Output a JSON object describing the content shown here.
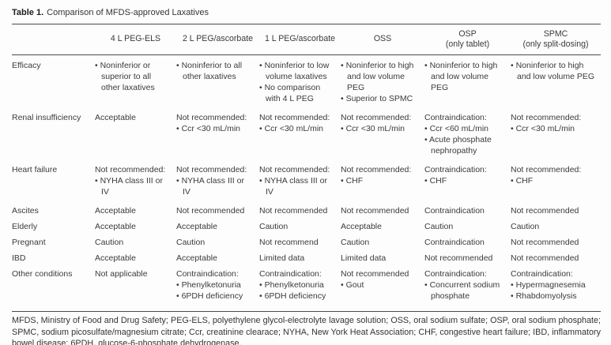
{
  "title": {
    "label": "Table 1.",
    "caption": "Comparison of MFDS-approved Laxatives"
  },
  "table": {
    "header": [
      {
        "lines": [
          ""
        ]
      },
      {
        "lines": [
          "4 L PEG-ELS"
        ]
      },
      {
        "lines": [
          "2 L PEG/ascorbate"
        ]
      },
      {
        "lines": [
          "1 L PEG/ascorbate"
        ]
      },
      {
        "lines": [
          "OSS"
        ]
      },
      {
        "lines": [
          "OSP",
          "(only tablet)"
        ]
      },
      {
        "lines": [
          "SPMC",
          "(only split-dosing)"
        ]
      }
    ],
    "rows": [
      {
        "label": "Efficacy",
        "cells": [
          {
            "text": "",
            "bullets": [
              "Noninferior or superior to all other laxatives"
            ]
          },
          {
            "text": "",
            "bullets": [
              "Noninferior to all other laxatives"
            ]
          },
          {
            "text": "",
            "bullets": [
              "Noninferior to low volume laxatives",
              "No comparison with 4 L PEG"
            ]
          },
          {
            "text": "",
            "bullets": [
              "Noninferior to high and low volume PEG",
              "Superior to SPMC"
            ]
          },
          {
            "text": "",
            "bullets": [
              "Noninferior to high and low volume PEG"
            ]
          },
          {
            "text": "",
            "bullets": [
              "Noninferior to high and low volume PEG"
            ]
          }
        ]
      },
      {
        "label": "Renal insufficiency",
        "cells": [
          {
            "text": "Acceptable",
            "bullets": []
          },
          {
            "text": "Not recommended:",
            "bullets": [
              "Ccr <30 mL/min"
            ]
          },
          {
            "text": "Not recommended:",
            "bullets": [
              "Ccr <30 mL/min"
            ]
          },
          {
            "text": "Not recommended:",
            "bullets": [
              "Ccr <30 mL/min"
            ]
          },
          {
            "text": "Contraindication:",
            "bullets": [
              "Ccr <60 mL/min",
              "Acute phosphate nephropathy"
            ]
          },
          {
            "text": "Not recommended:",
            "bullets": [
              "Ccr <30 mL/min"
            ]
          }
        ]
      },
      {
        "label": "Heart failure",
        "cells": [
          {
            "text": "Not recommended:",
            "bullets": [
              "NYHA class III or IV"
            ]
          },
          {
            "text": "Not recommended:",
            "bullets": [
              "NYHA class III or IV"
            ]
          },
          {
            "text": "Not recommended:",
            "bullets": [
              "NYHA class III or IV"
            ]
          },
          {
            "text": "Not recommended:",
            "bullets": [
              "CHF"
            ]
          },
          {
            "text": "Contraindication:",
            "bullets": [
              "CHF"
            ]
          },
          {
            "text": "Not recommended:",
            "bullets": [
              "CHF"
            ]
          }
        ]
      },
      {
        "label": "Ascites",
        "cells": [
          {
            "text": "Acceptable",
            "bullets": []
          },
          {
            "text": "Not recommended",
            "bullets": []
          },
          {
            "text": "Not recommended",
            "bullets": []
          },
          {
            "text": "Not recommended",
            "bullets": []
          },
          {
            "text": "Contraindication",
            "bullets": []
          },
          {
            "text": "Not recommended",
            "bullets": []
          }
        ]
      },
      {
        "label": "Elderly",
        "cells": [
          {
            "text": "Acceptable",
            "bullets": []
          },
          {
            "text": "Acceptable",
            "bullets": []
          },
          {
            "text": "Caution",
            "bullets": []
          },
          {
            "text": "Acceptable",
            "bullets": []
          },
          {
            "text": "Caution",
            "bullets": []
          },
          {
            "text": "Caution",
            "bullets": []
          }
        ]
      },
      {
        "label": "Pregnant",
        "cells": [
          {
            "text": "Caution",
            "bullets": []
          },
          {
            "text": "Caution",
            "bullets": []
          },
          {
            "text": "Not recommend",
            "bullets": []
          },
          {
            "text": "Caution",
            "bullets": []
          },
          {
            "text": "Contraindication",
            "bullets": []
          },
          {
            "text": "Not recommended",
            "bullets": []
          }
        ]
      },
      {
        "label": "IBD",
        "cells": [
          {
            "text": "Acceptable",
            "bullets": []
          },
          {
            "text": "Acceptable",
            "bullets": []
          },
          {
            "text": "Limited data",
            "bullets": []
          },
          {
            "text": "Limited data",
            "bullets": []
          },
          {
            "text": "Not recommended",
            "bullets": []
          },
          {
            "text": "Not recommended",
            "bullets": []
          }
        ]
      },
      {
        "label": "Other conditions",
        "cells": [
          {
            "text": "Not applicable",
            "bullets": []
          },
          {
            "text": "Contraindication:",
            "bullets": [
              "Phenylketonuria",
              "6PDH deficiency"
            ]
          },
          {
            "text": "Contraindication:",
            "bullets": [
              "Phenylketonuria",
              "6PDH deficiency"
            ]
          },
          {
            "text": "Not recommended",
            "bullets": [
              "Gout"
            ]
          },
          {
            "text": "Contraindication:",
            "bullets": [
              "Concurrent sodium phosphate"
            ]
          },
          {
            "text": "Contraindication:",
            "bullets": [
              "Hypermagnesemia",
              "Rhabdomyolysis"
            ]
          }
        ]
      }
    ]
  },
  "footnote": "MFDS, Ministry of Food and Drug Safety; PEG-ELS, polyethylene glycol-electrolyte lavage solution; OSS, oral sodium sulfate; OSP, oral sodium phosphate; SPMC, sodium picosulfate/magnesium citrate; Ccr, creatinine clearace; NYHA, New York Heat Association; CHF, congestive heart failure; IBD, inflammatory bowel disease; 6PDH, glucose-6-phosphate dehydrogenase.",
  "bullet_glyph": "•",
  "colors": {
    "text": "#3b3b3b",
    "rule": "#4a4a4a",
    "background": "#fdfdfd"
  }
}
